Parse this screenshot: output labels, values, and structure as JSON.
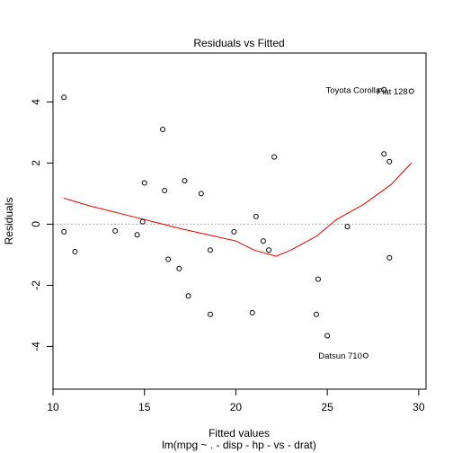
{
  "chart_data": {
    "type": "scatter",
    "title": "Residuals vs Fitted",
    "xlabel": "Fitted values",
    "subtitle": "lm(mpg ~ . - disp - hp - vs - drat)",
    "ylabel": "Residuals",
    "xlim": [
      10.0,
      30.4
    ],
    "ylim": [
      -5.4,
      5.6
    ],
    "x_ticks": [
      10,
      15,
      20,
      25,
      30
    ],
    "x_tick_labels": [
      "10",
      "15",
      "20",
      "25",
      "30"
    ],
    "y_ticks": [
      -4,
      -2,
      0,
      2,
      4
    ],
    "y_tick_labels": [
      "-4",
      "-2",
      "0",
      "2",
      "4"
    ],
    "reference_line": {
      "y": 0,
      "color": "#a9a9a9",
      "style": "dotted"
    },
    "point_color": "#000000",
    "smooth_color": "#e00000",
    "points": [
      {
        "x": 10.6,
        "y": 4.15
      },
      {
        "x": 10.6,
        "y": -0.25
      },
      {
        "x": 11.2,
        "y": -0.9
      },
      {
        "x": 13.4,
        "y": -0.22
      },
      {
        "x": 14.6,
        "y": -0.35
      },
      {
        "x": 14.9,
        "y": 0.08
      },
      {
        "x": 15.0,
        "y": 1.35
      },
      {
        "x": 16.0,
        "y": 3.1
      },
      {
        "x": 16.1,
        "y": 1.1
      },
      {
        "x": 16.3,
        "y": -1.15
      },
      {
        "x": 16.9,
        "y": -1.45
      },
      {
        "x": 17.2,
        "y": 1.42
      },
      {
        "x": 17.4,
        "y": -2.35
      },
      {
        "x": 18.1,
        "y": 1.0
      },
      {
        "x": 18.6,
        "y": -0.85
      },
      {
        "x": 18.6,
        "y": -2.95
      },
      {
        "x": 19.9,
        "y": -0.25
      },
      {
        "x": 20.9,
        "y": -2.9
      },
      {
        "x": 21.1,
        "y": 0.25
      },
      {
        "x": 21.5,
        "y": -0.55
      },
      {
        "x": 21.8,
        "y": -0.85
      },
      {
        "x": 22.1,
        "y": 2.2
      },
      {
        "x": 24.4,
        "y": -2.95
      },
      {
        "x": 24.5,
        "y": -1.8
      },
      {
        "x": 25.0,
        "y": -3.65
      },
      {
        "x": 26.1,
        "y": -0.08
      },
      {
        "x": 27.1,
        "y": -4.3,
        "label": "Datsun 710"
      },
      {
        "x": 28.1,
        "y": 2.3
      },
      {
        "x": 28.4,
        "y": 2.05
      },
      {
        "x": 28.4,
        "y": -1.1
      },
      {
        "x": 28.1,
        "y": 4.4,
        "label": "Toyota Corolla"
      },
      {
        "x": 29.6,
        "y": 4.35,
        "label": "Fiat 128"
      }
    ],
    "smooth": [
      {
        "x": 10.6,
        "y": 0.85
      },
      {
        "x": 12.0,
        "y": 0.6
      },
      {
        "x": 14.0,
        "y": 0.3
      },
      {
        "x": 16.0,
        "y": 0.0
      },
      {
        "x": 17.0,
        "y": -0.15
      },
      {
        "x": 18.5,
        "y": -0.35
      },
      {
        "x": 20.0,
        "y": -0.55
      },
      {
        "x": 21.0,
        "y": -0.85
      },
      {
        "x": 22.2,
        "y": -1.05
      },
      {
        "x": 23.0,
        "y": -0.85
      },
      {
        "x": 24.4,
        "y": -0.4
      },
      {
        "x": 25.5,
        "y": 0.15
      },
      {
        "x": 27.0,
        "y": 0.65
      },
      {
        "x": 28.5,
        "y": 1.3
      },
      {
        "x": 29.6,
        "y": 2.0
      }
    ]
  }
}
